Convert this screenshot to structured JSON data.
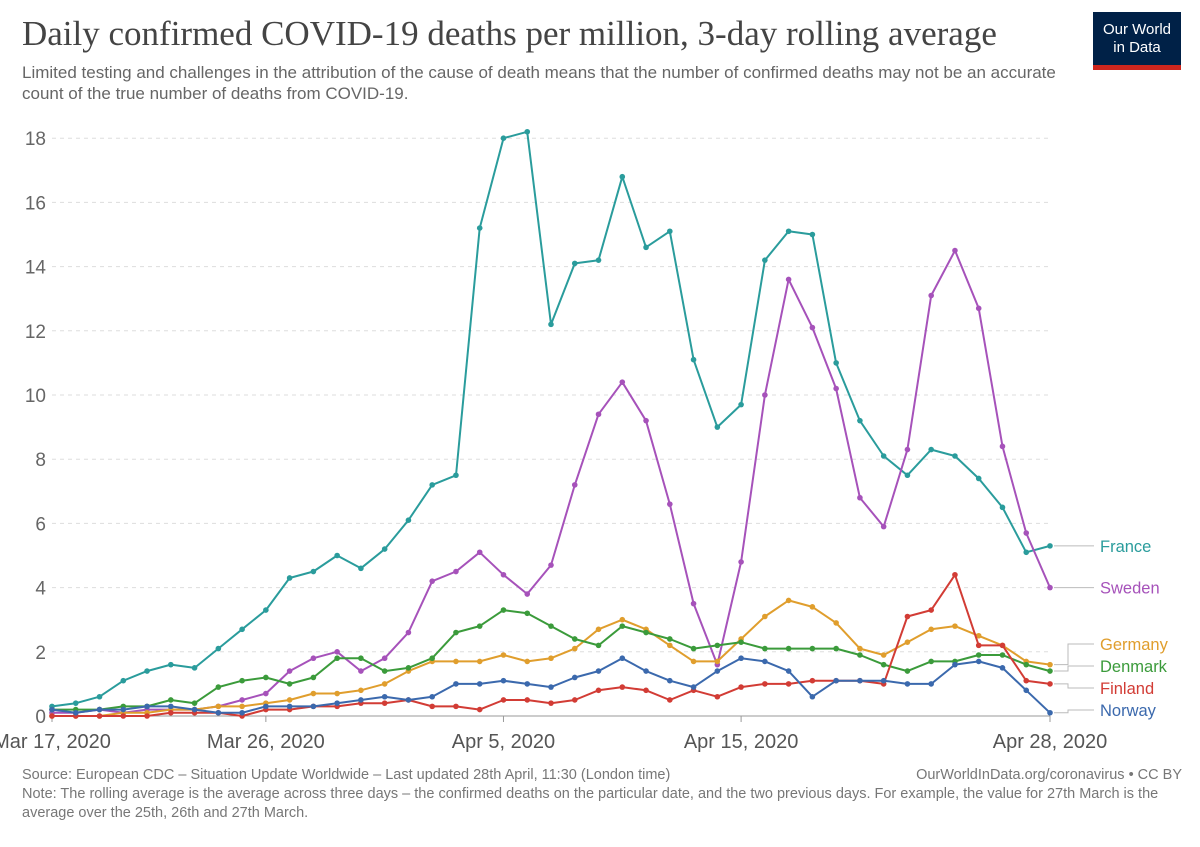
{
  "header": {
    "title": "Daily confirmed COVID-19 deaths per million, 3-day rolling average",
    "subtitle": "Limited testing and challenges in the attribution of the cause of death means that the number of confirmed deaths may not be an accurate count of the true number of deaths from COVID-19.",
    "logo_line1": "Our World",
    "logo_line2": "in Data"
  },
  "footer": {
    "source": "Source: European CDC – Situation Update Worldwide – Last updated 28th April, 11:30 (London time)",
    "url": "OurWorldInData.org/coronavirus • CC BY",
    "note": "Note: The rolling average is the average across three days – the confirmed deaths on the particular date, and the two previous days. For example, the value for 27th March is the average over the 25th, 26th and 27th March."
  },
  "chart_data": {
    "type": "line",
    "title": "Daily confirmed COVID-19 deaths per million, 3-day rolling average",
    "x_start": "2020-03-17",
    "x": [
      "Mar 17",
      "Mar 18",
      "Mar 19",
      "Mar 20",
      "Mar 21",
      "Mar 22",
      "Mar 23",
      "Mar 24",
      "Mar 25",
      "Mar 26",
      "Mar 27",
      "Mar 28",
      "Mar 29",
      "Mar 30",
      "Mar 31",
      "Apr 1",
      "Apr 2",
      "Apr 3",
      "Apr 4",
      "Apr 5",
      "Apr 6",
      "Apr 7",
      "Apr 8",
      "Apr 9",
      "Apr 10",
      "Apr 11",
      "Apr 12",
      "Apr 13",
      "Apr 14",
      "Apr 15",
      "Apr 16",
      "Apr 17",
      "Apr 18",
      "Apr 19",
      "Apr 20",
      "Apr 21",
      "Apr 22",
      "Apr 23",
      "Apr 24",
      "Apr 25",
      "Apr 26",
      "Apr 27",
      "Apr 28"
    ],
    "x_ticks": [
      "Mar 17, 2020",
      "Mar 26, 2020",
      "Apr 5, 2020",
      "Apr 15, 2020",
      "Apr 28, 2020"
    ],
    "x_tick_index": [
      0,
      9,
      19,
      29,
      42
    ],
    "y_ticks": [
      "0",
      "2",
      "4",
      "6",
      "8",
      "10",
      "12",
      "14",
      "16",
      "18"
    ],
    "ylim": [
      0,
      18.5
    ],
    "grid": "horizontal dashed",
    "legend": "right, labels at line ends",
    "series": [
      {
        "name": "France",
        "color": "#2a9c9c",
        "values": [
          0.3,
          0.4,
          0.6,
          1.1,
          1.4,
          1.6,
          1.5,
          2.1,
          2.7,
          3.3,
          4.3,
          4.5,
          5.0,
          4.6,
          5.2,
          6.1,
          7.2,
          7.5,
          15.2,
          18.0,
          18.2,
          12.2,
          14.1,
          14.2,
          16.8,
          14.6,
          15.1,
          11.1,
          9.0,
          9.7,
          14.2,
          15.1,
          15.0,
          11.0,
          9.2,
          8.1,
          7.5,
          8.3,
          8.1,
          7.4,
          6.5,
          5.1,
          5.3
        ]
      },
      {
        "name": "Sweden",
        "color": "#a652ba",
        "values": [
          0.1,
          0.1,
          0.2,
          0.1,
          0.2,
          0.2,
          0.2,
          0.3,
          0.5,
          0.7,
          1.4,
          1.8,
          2.0,
          1.4,
          1.8,
          2.6,
          4.2,
          4.5,
          5.1,
          4.4,
          3.8,
          4.7,
          7.2,
          9.4,
          10.4,
          9.2,
          6.6,
          3.5,
          1.6,
          4.8,
          10.0,
          13.6,
          12.1,
          10.2,
          6.8,
          5.9,
          8.3,
          13.1,
          14.5,
          12.7,
          8.4,
          5.7,
          4.0
        ]
      },
      {
        "name": "Germany",
        "color": "#e09e2d",
        "values": [
          0.0,
          0.0,
          0.0,
          0.1,
          0.1,
          0.2,
          0.2,
          0.3,
          0.3,
          0.4,
          0.5,
          0.7,
          0.7,
          0.8,
          1.0,
          1.4,
          1.7,
          1.7,
          1.7,
          1.9,
          1.7,
          1.8,
          2.1,
          2.7,
          3.0,
          2.7,
          2.2,
          1.7,
          1.7,
          2.4,
          3.1,
          3.6,
          3.4,
          2.9,
          2.1,
          1.9,
          2.3,
          2.7,
          2.8,
          2.5,
          2.2,
          1.7,
          1.6
        ]
      },
      {
        "name": "Denmark",
        "color": "#3b9b3b",
        "values": [
          0.2,
          0.2,
          0.2,
          0.3,
          0.3,
          0.5,
          0.4,
          0.9,
          1.1,
          1.2,
          1.0,
          1.2,
          1.8,
          1.8,
          1.4,
          1.5,
          1.8,
          2.6,
          2.8,
          3.3,
          3.2,
          2.8,
          2.4,
          2.2,
          2.8,
          2.6,
          2.4,
          2.1,
          2.2,
          2.3,
          2.1,
          2.1,
          2.1,
          2.1,
          1.9,
          1.6,
          1.4,
          1.7,
          1.7,
          1.9,
          1.9,
          1.6,
          1.4
        ]
      },
      {
        "name": "Finland",
        "color": "#d23c35",
        "values": [
          0.0,
          0.0,
          0.0,
          0.0,
          0.0,
          0.1,
          0.1,
          0.1,
          0.0,
          0.2,
          0.2,
          0.3,
          0.3,
          0.4,
          0.4,
          0.5,
          0.3,
          0.3,
          0.2,
          0.5,
          0.5,
          0.4,
          0.5,
          0.8,
          0.9,
          0.8,
          0.5,
          0.8,
          0.6,
          0.9,
          1.0,
          1.0,
          1.1,
          1.1,
          1.1,
          1.0,
          3.1,
          3.3,
          4.4,
          2.2,
          2.2,
          1.1,
          1.0
        ]
      },
      {
        "name": "Norway",
        "color": "#3b69ad",
        "values": [
          0.2,
          0.1,
          0.2,
          0.2,
          0.3,
          0.3,
          0.2,
          0.1,
          0.1,
          0.3,
          0.3,
          0.3,
          0.4,
          0.5,
          0.6,
          0.5,
          0.6,
          1.0,
          1.0,
          1.1,
          1.0,
          0.9,
          1.2,
          1.4,
          1.8,
          1.4,
          1.1,
          0.9,
          1.4,
          1.8,
          1.7,
          1.4,
          0.6,
          1.1,
          1.1,
          1.1,
          1.0,
          1.0,
          1.6,
          1.7,
          1.5,
          0.8,
          0.1
        ]
      }
    ]
  }
}
